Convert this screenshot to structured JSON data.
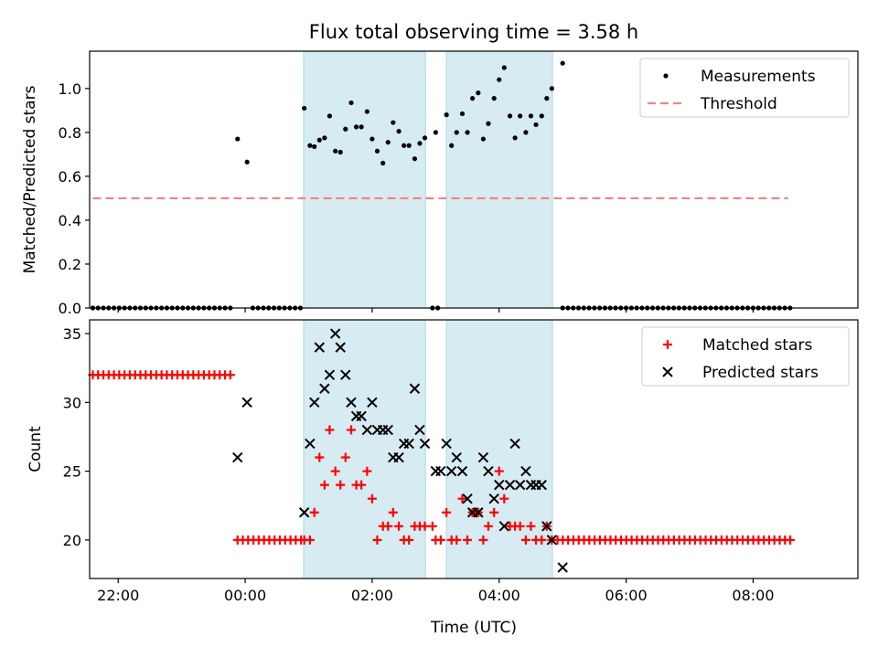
{
  "figure": {
    "title": "Flux total observing time = 3.58 h",
    "xlabel": "Time (UTC)"
  },
  "colors": {
    "band": "#add8e6",
    "threshold": "#ff7f7f",
    "matched": "#ff0000",
    "predicted": "#000000",
    "measurement": "#000000"
  },
  "chart_data": [
    {
      "type": "scatter",
      "panel": "top",
      "ylabel": "Matched/Predicted stars",
      "xlim": [
        -2.45,
        9.65
      ],
      "ylim": [
        0,
        1.17
      ],
      "yticks": [
        0.0,
        0.2,
        0.4,
        0.6,
        0.8,
        1.0
      ],
      "xticks": [
        -2,
        0,
        2,
        4,
        6,
        8
      ],
      "xtick_labels": [
        "22:00",
        "00:00",
        "02:00",
        "04:00",
        "06:00",
        "08:00"
      ],
      "shaded_intervals": [
        [
          0.92,
          2.84
        ],
        [
          3.17,
          4.84
        ]
      ],
      "legend": {
        "position": "top-right",
        "entries": [
          "Measurements",
          "Threshold"
        ]
      },
      "series": [
        {
          "name": "Measurements",
          "kind": "points",
          "zeros_x": [
            [
              -2.4,
              -0.17
            ],
            [
              0.12,
              0.88
            ],
            [
              2.95,
              3.07
            ],
            [
              5.0,
              8.6
            ]
          ],
          "zeros_step": 0.0833,
          "x": [
            -0.12,
            0.03,
            0.93,
            1.02,
            1.09,
            1.17,
            1.25,
            1.33,
            1.42,
            1.5,
            1.58,
            1.67,
            1.75,
            1.83,
            1.92,
            2.0,
            2.08,
            2.17,
            2.25,
            2.33,
            2.42,
            2.5,
            2.58,
            2.67,
            2.75,
            2.83,
            3.0,
            3.17,
            3.25,
            3.33,
            3.42,
            3.5,
            3.58,
            3.67,
            3.75,
            3.83,
            3.92,
            4.0,
            4.08,
            4.17,
            4.25,
            4.33,
            4.42,
            4.5,
            4.58,
            4.67,
            4.75,
            4.83,
            5.0
          ],
          "y": [
            0.77,
            0.665,
            0.91,
            0.74,
            0.735,
            0.765,
            0.775,
            0.875,
            0.715,
            0.71,
            0.815,
            0.935,
            0.825,
            0.825,
            0.895,
            0.77,
            0.715,
            0.66,
            0.755,
            0.845,
            0.805,
            0.74,
            0.74,
            0.68,
            0.75,
            0.775,
            0.8,
            0.88,
            0.74,
            0.8,
            0.885,
            0.8,
            0.955,
            0.98,
            0.77,
            0.84,
            0.955,
            1.04,
            1.095,
            0.875,
            0.775,
            0.875,
            0.8,
            0.875,
            0.835,
            0.875,
            0.955,
            1.0,
            1.115
          ]
        },
        {
          "name": "Threshold",
          "kind": "dashed-line",
          "x": [
            -2.4,
            8.55
          ],
          "y": [
            0.5,
            0.5
          ]
        }
      ]
    },
    {
      "type": "scatter",
      "panel": "bottom",
      "ylabel": "Count",
      "xlim": [
        -2.45,
        9.65
      ],
      "ylim": [
        17.2,
        36.0
      ],
      "yticks": [
        20,
        25,
        30,
        35
      ],
      "xticks": [
        -2,
        0,
        2,
        4,
        6,
        8
      ],
      "xtick_labels": [
        "22:00",
        "00:00",
        "02:00",
        "04:00",
        "06:00",
        "08:00"
      ],
      "shaded_intervals": [
        [
          0.92,
          2.84
        ],
        [
          3.17,
          4.84
        ]
      ],
      "legend": {
        "position": "top-right",
        "entries": [
          "Matched stars",
          "Predicted stars"
        ]
      },
      "series": [
        {
          "name": "Matched stars",
          "kind": "plus",
          "runs": [
            {
              "from": -2.4,
              "to": -0.17,
              "step": 0.0833,
              "y": 32
            },
            {
              "from": -0.12,
              "to": 0.88,
              "step": 0.0833,
              "y": 20
            },
            {
              "from": 4.92,
              "to": 8.6,
              "step": 0.0833,
              "y": 20
            }
          ],
          "x": [
            0.93,
            1.02,
            1.09,
            1.17,
            1.25,
            1.33,
            1.42,
            1.5,
            1.58,
            1.67,
            1.75,
            1.83,
            1.92,
            2.0,
            2.08,
            2.17,
            2.25,
            2.33,
            2.42,
            2.5,
            2.58,
            2.67,
            2.75,
            2.83,
            2.95,
            3.0,
            3.08,
            3.17,
            3.25,
            3.33,
            3.42,
            3.5,
            3.58,
            3.67,
            3.75,
            3.83,
            3.92,
            4.0,
            4.08,
            4.17,
            4.25,
            4.33,
            4.42,
            4.5,
            4.58,
            4.67,
            4.75,
            4.83
          ],
          "y": [
            20,
            20,
            22,
            26,
            24,
            28,
            25,
            24,
            26,
            28,
            24,
            24,
            25,
            23,
            20,
            21,
            21,
            22,
            21,
            20,
            20,
            21,
            21,
            21,
            21,
            20,
            20,
            22,
            20,
            20,
            23,
            20,
            22,
            22,
            20,
            21,
            22,
            25,
            23,
            21,
            21,
            21,
            20,
            21,
            20,
            20,
            21,
            20
          ]
        },
        {
          "name": "Predicted stars",
          "kind": "x",
          "x": [
            -0.12,
            0.03,
            0.93,
            1.02,
            1.09,
            1.17,
            1.25,
            1.33,
            1.42,
            1.5,
            1.58,
            1.67,
            1.75,
            1.83,
            1.92,
            2.0,
            2.08,
            2.17,
            2.25,
            2.33,
            2.42,
            2.5,
            2.58,
            2.67,
            2.75,
            2.83,
            3.0,
            3.08,
            3.17,
            3.25,
            3.33,
            3.42,
            3.5,
            3.58,
            3.67,
            3.75,
            3.83,
            3.92,
            4.0,
            4.08,
            4.17,
            4.25,
            4.33,
            4.42,
            4.5,
            4.58,
            4.67,
            4.75,
            4.83,
            5.0
          ],
          "y": [
            26,
            30,
            22,
            27,
            30,
            34,
            31,
            32,
            35,
            34,
            32,
            30,
            29,
            29,
            28,
            30,
            28,
            28,
            28,
            26,
            26,
            27,
            27,
            31,
            28,
            27,
            25,
            25,
            27,
            25,
            26,
            25,
            23,
            22,
            22,
            26,
            25,
            23,
            24,
            21,
            24,
            27,
            24,
            25,
            24,
            24,
            24,
            21,
            20,
            18
          ]
        }
      ]
    }
  ]
}
